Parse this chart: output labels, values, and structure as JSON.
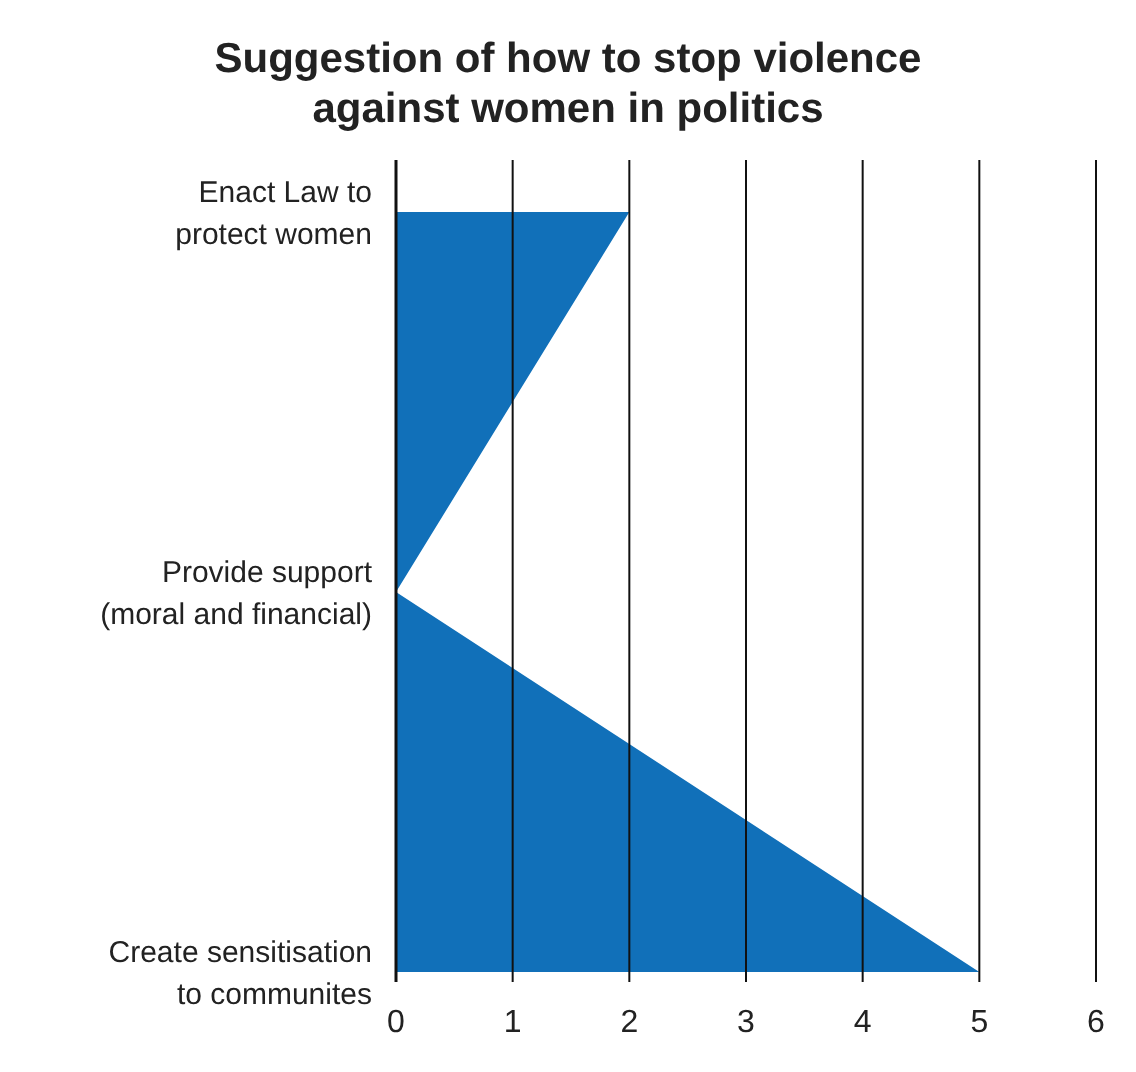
{
  "chart_data": {
    "type": "area",
    "orientation": "horizontal",
    "title": "Suggestion of how to stop violence\nagainst women in politics",
    "categories": [
      "Enact Law to\nprotect women",
      "Provide support\n(moral and financial)",
      "Create sensitisation\nto communites"
    ],
    "series": [
      {
        "color": "#1170b9",
        "values": [
          2,
          0,
          5
        ]
      }
    ],
    "xlim": [
      0,
      6
    ],
    "xticks": [
      0,
      1,
      2,
      3,
      4,
      5,
      6
    ],
    "grid": "x"
  }
}
